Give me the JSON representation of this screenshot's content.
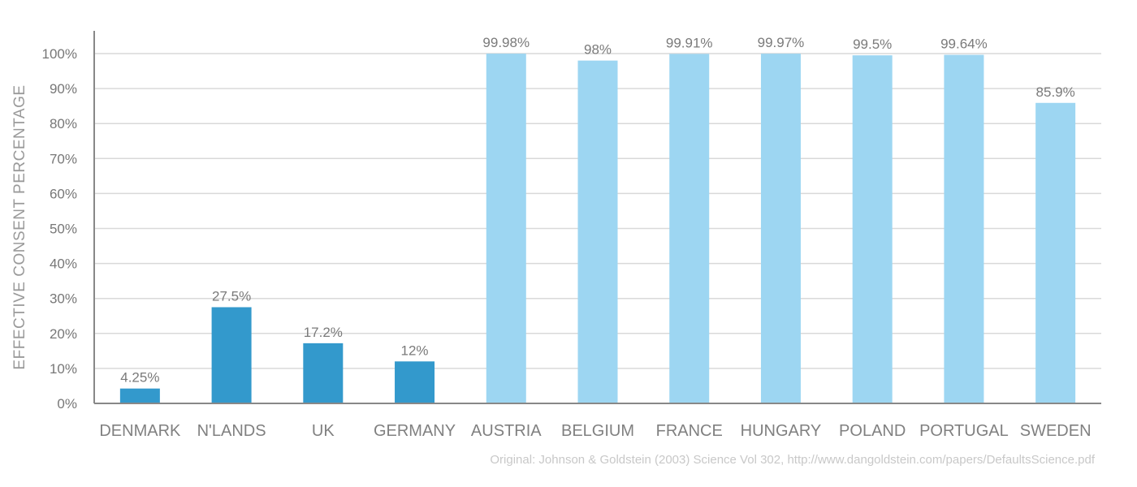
{
  "chart_data": {
    "type": "bar",
    "categories": [
      "DENMARK",
      "N'LANDS",
      "UK",
      "GERMANY",
      "AUSTRIA",
      "BELGIUM",
      "FRANCE",
      "HUNGARY",
      "POLAND",
      "PORTUGAL",
      "SWEDEN"
    ],
    "values": [
      4.25,
      27.5,
      17.2,
      12,
      99.98,
      98,
      99.91,
      99.97,
      99.5,
      99.64,
      85.9
    ],
    "value_labels": [
      "4.25%",
      "27.5%",
      "17.2%",
      "12%",
      "99.98%",
      "98%",
      "99.91%",
      "99.97%",
      "99.5%",
      "99.64%",
      "85.9%"
    ],
    "bar_colors": [
      "#3399cc",
      "#3399cc",
      "#3399cc",
      "#3399cc",
      "#9dd6f2",
      "#9dd6f2",
      "#9dd6f2",
      "#9dd6f2",
      "#9dd6f2",
      "#9dd6f2",
      "#9dd6f2"
    ],
    "ylabel": "EFFECTIVE CONSENT PERCENTAGE",
    "xlabel": "",
    "title": "",
    "ylim": [
      0,
      100
    ],
    "yticks": [
      0,
      10,
      20,
      30,
      40,
      50,
      60,
      70,
      80,
      90,
      100
    ],
    "ytick_labels": [
      "0%",
      "10%",
      "20%",
      "30%",
      "40%",
      "50%",
      "60%",
      "70%",
      "80%",
      "90%",
      "100%"
    ],
    "grid": true
  },
  "source_note": "Original: Johnson & Goldstein (2003) Science Vol 302, http://www.dangoldstein.com/papers/DefaultsScience.pdf",
  "colors": {
    "opt_in": "#3399cc",
    "opt_out": "#9dd6f2",
    "grid": "#d9d9d9",
    "axis": "#888888"
  }
}
